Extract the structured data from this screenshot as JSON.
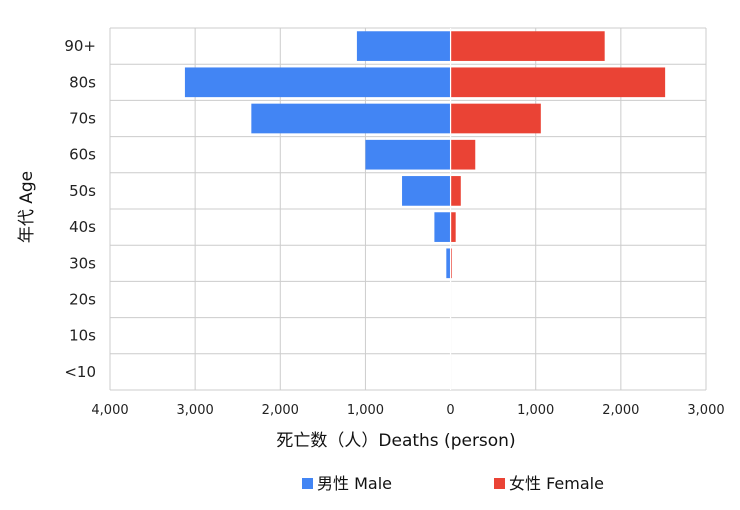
{
  "chart_data": {
    "type": "bar",
    "orientation": "horizontal-pyramid",
    "categories": [
      "90+",
      "80s",
      "70s",
      "60s",
      "50s",
      "40s",
      "30s",
      "20s",
      "10s",
      "<10"
    ],
    "series": [
      {
        "name": "男性 Male",
        "side": "left",
        "color": "#4285f4",
        "values": [
          1100,
          3120,
          2340,
          1000,
          570,
          190,
          50,
          0,
          0,
          0
        ]
      },
      {
        "name": "女性 Female",
        "side": "right",
        "color": "#ea4335",
        "values": [
          1810,
          2520,
          1060,
          290,
          120,
          60,
          15,
          0,
          0,
          0
        ]
      }
    ],
    "xlim": [
      -4000,
      3000
    ],
    "xticks": [
      -4000,
      -3000,
      -2000,
      -1000,
      0,
      1000,
      2000,
      3000
    ],
    "xtick_labels": [
      "4,000",
      "3,000",
      "2,000",
      "1,000",
      "0",
      "1,000",
      "2,000",
      "3,000"
    ],
    "xlabel": "死亡数（人）Deaths (person)",
    "ylabel": "年代 Age",
    "grid": true,
    "legend_position": "bottom-center"
  }
}
